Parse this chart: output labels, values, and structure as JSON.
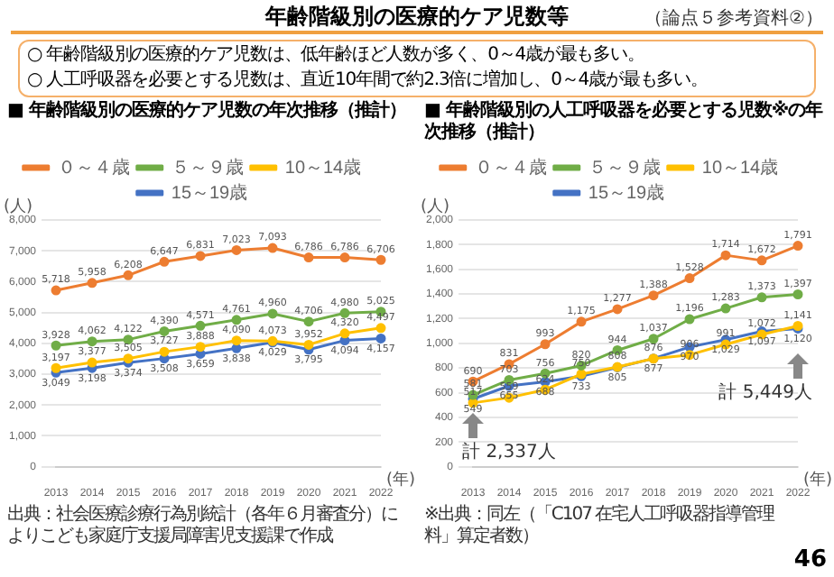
{
  "chart_data": [
    {
      "type": "other",
      "title": "年齢階級別の医療的ケア児数等",
      "annotations": [
        "（論点５参考資料②）",
        "○ 年齢階級別の医療的ケア児数は、低年齢ほど人数が多く、0～4歳が最も多い。",
        "○ 人工呼吸器を必要とする児数は、直近10年間で約2.3倍に増加し、0～4歳が最も多い。",
        "46"
      ]
    },
    {
      "type": "line",
      "title": "■ 年齢階級別の医療的ケア児数の年次推移（推計）",
      "ylabel": "(人)",
      "xlabel": "(年)",
      "categories": [
        "2013",
        "2014",
        "2015",
        "2016",
        "2017",
        "2018",
        "2019",
        "2020",
        "2021",
        "2022"
      ],
      "series": [
        {
          "name": "０～４歳",
          "color": "#ed7d31",
          "values": [
            5718,
            5958,
            6208,
            6647,
            6831,
            7023,
            7093,
            6786,
            6786,
            6706
          ],
          "value_labels": [
            "5,718",
            "5,958",
            "6,208",
            "6,647",
            "6,831",
            "7,023",
            "7,093",
            "6,786",
            "6,786",
            "6,706"
          ]
        },
        {
          "name": "５～９歳",
          "color": "#70ad47",
          "values": [
            3928,
            4062,
            4122,
            4390,
            4571,
            4761,
            4960,
            4706,
            4980,
            5025
          ],
          "value_labels": [
            "3,928",
            "4,062",
            "4,122",
            "4,390",
            "4,571",
            "4,761",
            "4,960",
            "4,706",
            "4,980",
            "5,025"
          ]
        },
        {
          "name": "10～14歳",
          "color": "#ffc000",
          "values": [
            3197,
            3377,
            3505,
            3727,
            3888,
            4090,
            4073,
            3952,
            4320,
            4497
          ],
          "value_labels": [
            "3,197",
            "3,377",
            "3,505",
            "3,727",
            "3,888",
            "4,090",
            "4,073",
            "3,952",
            "4,320",
            "4,497"
          ]
        },
        {
          "name": "15～19歳",
          "color": "#4472c4",
          "values": [
            3049,
            3198,
            3374,
            3508,
            3659,
            3838,
            4029,
            3795,
            4094,
            4157
          ],
          "value_labels": [
            "3,049",
            "3,198",
            "3,374",
            "3,508",
            "3,659",
            "3,838",
            "4,029",
            "3,795",
            "4,094",
            "4,157"
          ]
        }
      ],
      "ylim": [
        0,
        8000
      ],
      "yticks": [
        0,
        {
          "value": 1000,
          "label": "1,000"
        },
        {
          "value": 2000,
          "label": "2,000"
        },
        {
          "value": 3000,
          "label": "3,000"
        },
        {
          "value": 4000,
          "label": "4,000"
        },
        {
          "value": 5000,
          "label": "5,000"
        },
        {
          "value": 6000,
          "label": "6,000"
        },
        {
          "value": 7000,
          "label": "7,000"
        },
        {
          "value": 8000,
          "label": "8,000"
        }
      ],
      "grid": "y",
      "legend": "top",
      "marker": "circle",
      "annotations": [
        "出典：社会医療診療行為別統計（各年６月審査分）によりこども家庭庁支援局障害児支援課で作成"
      ]
    },
    {
      "type": "line",
      "title": "■ 年齢階級別の人工呼吸器を必要とする児数※の年次推移（推計）",
      "ylabel": "(人)",
      "xlabel": "(年)",
      "categories": [
        "2013",
        "2014",
        "2015",
        "2016",
        "2017",
        "2018",
        "2019",
        "2020",
        "2021",
        "2022"
      ],
      "series": [
        {
          "name": "０～４歳",
          "color": "#ed7d31",
          "values": [
            690,
            831,
            993,
            1175,
            1277,
            1388,
            1528,
            1714,
            1672,
            1791
          ],
          "value_labels": [
            "690",
            "831",
            "993",
            "1,175",
            "1,277",
            "1,388",
            "1,528",
            "1,714",
            "1,672",
            "1,791"
          ]
        },
        {
          "name": "５～９歳",
          "color": "#70ad47",
          "values": [
            581,
            703,
            756,
            820,
            944,
            1037,
            1196,
            1283,
            1373,
            1397
          ],
          "value_labels": [
            "581",
            "703",
            "756",
            "820",
            "944",
            "1,037",
            "1,196",
            "1,283",
            "1,373",
            "1,397"
          ]
        },
        {
          "name": "10～14歳",
          "color": "#ffc000",
          "values": [
            517,
            559,
            624,
            750,
            808,
            876,
            906,
            991,
            1072,
            1141
          ],
          "value_labels": [
            "517",
            "559",
            "624",
            "750",
            "808",
            "876",
            "906",
            "991",
            "1,072",
            "1,141"
          ]
        },
        {
          "name": "15～19歳",
          "color": "#4472c4",
          "values": [
            549,
            655,
            688,
            733,
            805,
            877,
            970,
            1029,
            1097,
            1120
          ],
          "value_labels": [
            "549",
            "655",
            "688",
            "733",
            "805",
            "877",
            "970",
            "1,029",
            "1,097",
            "1,120"
          ]
        }
      ],
      "ylim": [
        0,
        2000
      ],
      "yticks": [
        0,
        200,
        400,
        600,
        800,
        {
          "value": 1000,
          "label": "1,000"
        },
        {
          "value": 1200,
          "label": "1,200"
        },
        {
          "value": 1400,
          "label": "1,400"
        },
        {
          "value": 1600,
          "label": "1,600"
        },
        {
          "value": 1800,
          "label": "1,800"
        },
        {
          "value": 2000,
          "label": "2,000"
        }
      ],
      "grid": "y",
      "legend": "top",
      "marker": "circle",
      "annotations": [
        "計 2,337人",
        "計 5,449人",
        "※出典：同左（「C107 在宅人工呼吸器指導管理料」算定者数）"
      ]
    }
  ]
}
